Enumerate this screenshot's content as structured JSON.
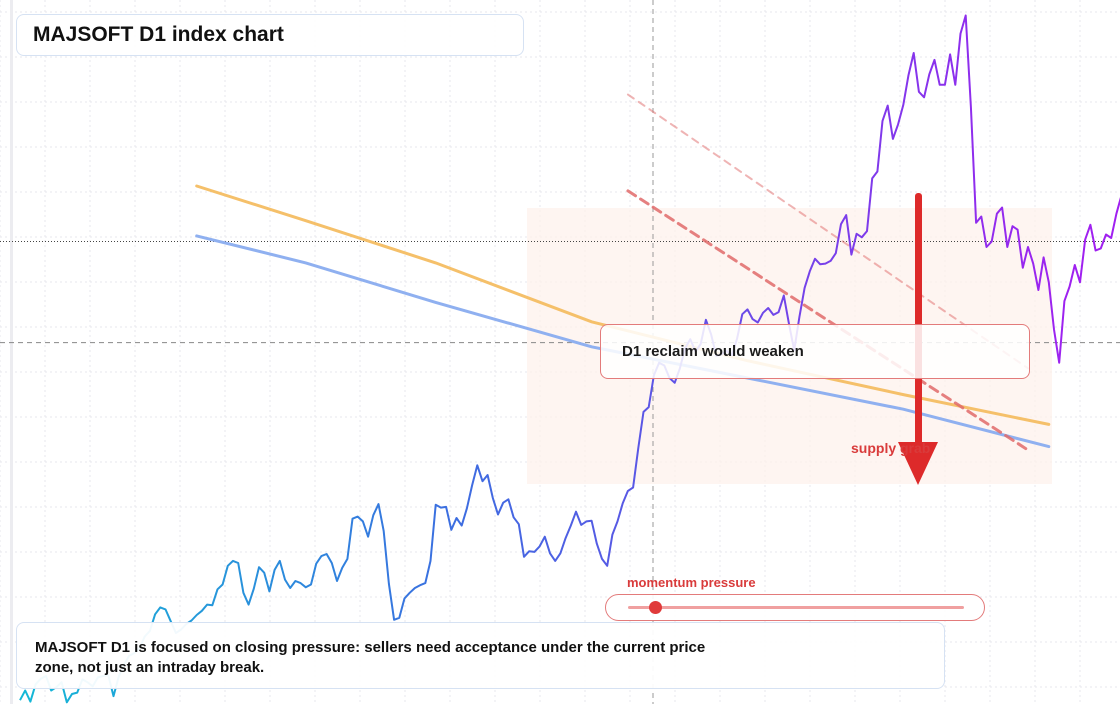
{
  "title": "MAJSOFT D1 index chart",
  "annotations": {
    "reclaim_label": "D1 reclaim would weaken",
    "supply_label": "supply grab",
    "momentum_label": "momentum pressure",
    "momentum_level": 0.08
  },
  "note": "MAJSOFT D1 is focused on closing pressure: sellers need acceptance under the current price zone, not just an intraday break.",
  "colors": {
    "price_start": "#14b8d6",
    "price_mid": "#3b6fe0",
    "price_end": "#a020f0",
    "support_line": "#8fb0f0",
    "resistance_line": "#f5c06a",
    "channel": "#e06a6a",
    "arrow": "#dd2a2a",
    "zone": "#fdf1ec"
  },
  "chart_data": {
    "type": "line",
    "title": "MAJSOFT D1 index chart",
    "xlabel": "",
    "ylabel": "",
    "grid": true,
    "xlim": [
      0,
      204
    ],
    "ylim": [
      0,
      100
    ],
    "current_price": 66.6,
    "reference_level": 52.0,
    "series": [
      {
        "values": [
          0.4,
          1.8,
          0.2,
          2.7,
          3.5,
          3.9,
          1.8,
          2.3,
          3.0,
          0.1,
          1.3,
          1.5,
          3.4,
          3.0,
          2.4,
          3.7,
          3.9,
          4.0,
          1.0,
          3.8,
          5.5,
          6.8,
          7.2,
          7.9,
          9.6,
          10.4,
          12.8,
          13.8,
          13.5,
          11.8,
          10.1,
          10.6,
          11.4,
          11.9,
          12.7,
          13.3,
          14.2,
          14.1,
          16.4,
          17.1,
          19.8,
          20.5,
          20.2,
          15.9,
          14.2,
          16.5,
          19.6,
          18.8,
          16.1,
          19.2,
          20.5,
          17.8,
          16.6,
          17.6,
          17.3,
          16.7,
          17.1,
          20.1,
          21.2,
          21.5,
          20.2,
          17.6,
          19.5,
          20.8,
          26.6,
          26.9,
          26.2,
          24.0,
          27.1,
          28.7,
          24.8,
          17.2,
          12.0,
          12.3,
          15.1,
          15.9,
          16.6,
          17.0,
          17.3,
          20.5,
          28.6,
          28.2,
          28.3,
          25.0,
          26.7,
          25.6,
          28.1,
          31.4,
          34.3,
          32.0,
          32.9,
          29.6,
          27.2,
          28.9,
          29.4,
          26.8,
          25.8,
          21.1,
          21.9,
          21.8,
          22.6,
          24.0,
          21.6,
          20.5,
          21.6,
          23.8,
          25.6,
          27.6,
          25.7,
          26.2,
          26.3,
          23.0,
          20.8,
          19.8,
          24.3,
          26.2,
          28.8,
          30.6,
          31.1,
          36.8,
          42.0,
          42.7,
          47.3,
          49.1,
          48.7,
          46.9,
          46.2,
          48.3,
          51.2,
          52.5,
          50.7,
          51.8,
          55.3,
          53.2,
          50.1,
          50.3,
          50.8,
          50.2,
          52.6,
          56.1,
          56.8,
          55.4,
          54.9,
          56.3,
          57.0,
          56.0,
          56.4,
          58.8,
          54.7,
          50.9,
          55.7,
          59.9,
          62.3,
          64.1,
          63.3,
          63.4,
          63.8,
          64.9,
          69.1,
          70.4,
          64.7,
          67.7,
          67.2,
          68.1,
          75.7,
          76.7,
          84.0,
          86.2,
          81.4,
          83.5,
          86.3,
          90.6,
          93.8,
          88.2,
          87.4,
          90.7,
          92.8,
          89.2,
          89.2,
          93.6,
          89.2,
          96.6,
          99.2,
          86.0,
          69.3,
          70.2,
          65.8,
          66.6,
          70.6,
          71.5,
          65.8,
          68.8,
          68.3,
          62.8,
          65.8,
          63.4,
          59.6,
          64.3,
          60.7,
          53.9,
          49.1,
          58.0,
          60.1,
          63.2,
          60.7,
          66.9,
          69.0,
          65.3,
          65.6,
          67.6,
          67.1,
          70.6,
          73.3,
          76.5,
          73.5,
          79.5,
          73.4,
          67.5,
          67.8,
          67.7
        ]
      }
    ],
    "overlays": [
      {
        "kind": "moving-average",
        "color": "resistance_line",
        "points": [
          [
            34,
            74.6
          ],
          [
            55,
            69.6
          ],
          [
            80,
            63.5
          ],
          [
            110,
            55.0
          ],
          [
            140,
            49.4
          ],
          [
            170,
            44.5
          ],
          [
            198,
            40.2
          ]
        ]
      },
      {
        "kind": "moving-average",
        "color": "support_line",
        "points": [
          [
            34,
            67.4
          ],
          [
            55,
            63.5
          ],
          [
            80,
            57.8
          ],
          [
            110,
            51.4
          ],
          [
            140,
            46.9
          ],
          [
            170,
            42.4
          ],
          [
            198,
            37.0
          ]
        ]
      },
      {
        "kind": "trendline",
        "style": "dashed",
        "points": [
          [
            117,
            73.9
          ],
          [
            194,
            36.5
          ]
        ]
      },
      {
        "kind": "trendline",
        "style": "dashed-light",
        "points": [
          [
            117,
            87.8
          ],
          [
            194,
            48.3
          ]
        ]
      }
    ]
  }
}
